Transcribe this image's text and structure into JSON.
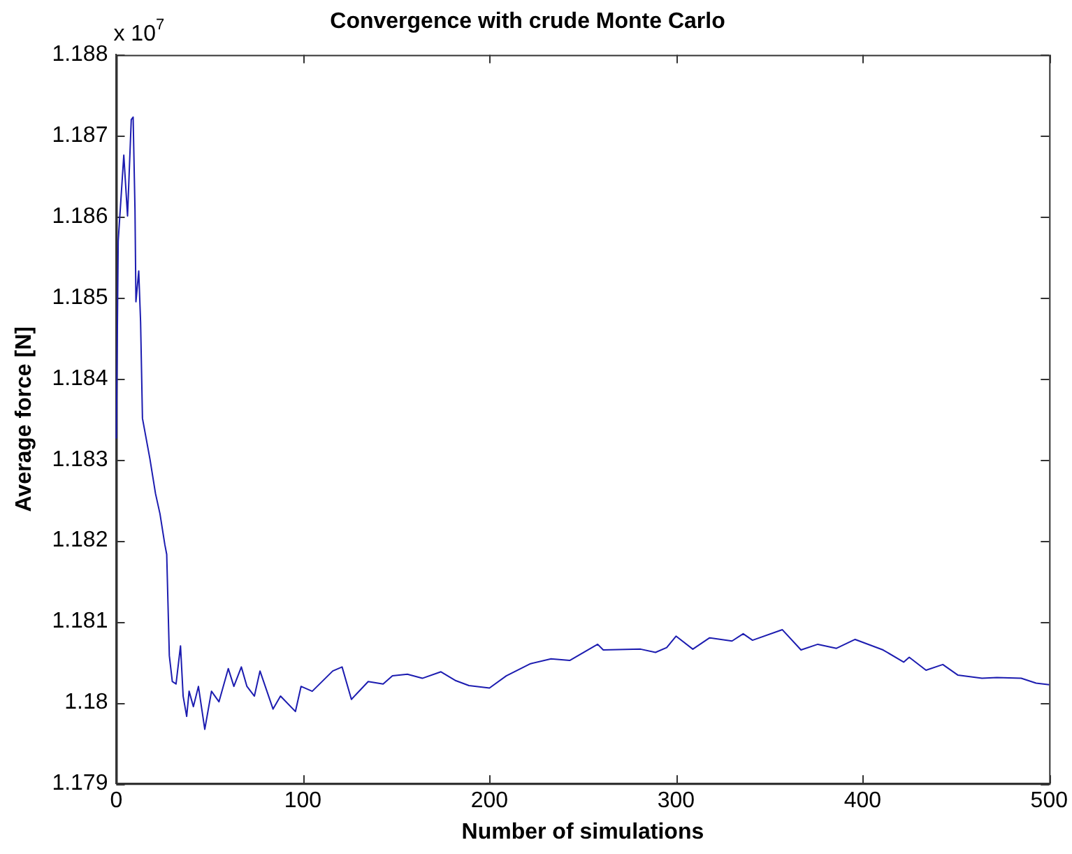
{
  "chart_data": {
    "type": "line",
    "title": "Convergence with crude Monte Carlo",
    "xlabel": "Number of simulations",
    "ylabel": "Average force [N]",
    "annotations": [
      "x 10$^{7}$"
    ],
    "series": [
      {
        "color": "#1c1cb0",
        "x": [
          0,
          1,
          4,
          6,
          8,
          9,
          10,
          10.5,
          12,
          13,
          14,
          18,
          21,
          23.4,
          26,
          27,
          28.4,
          30,
          32,
          34.4,
          35.8,
          37.7,
          39,
          41.3,
          44,
          47.4,
          51,
          55,
          60,
          63,
          67,
          70,
          74,
          77,
          84,
          88,
          96,
          99,
          105,
          116,
          121,
          126,
          135,
          143,
          148,
          156,
          164,
          174,
          182,
          189,
          200,
          209,
          222,
          233,
          243,
          258,
          261,
          281,
          289,
          295,
          300,
          309,
          318,
          330,
          336,
          341,
          357,
          367,
          376,
          386,
          396,
          411,
          422,
          425,
          434,
          443,
          451,
          464,
          472,
          485,
          493,
          500
        ],
        "values": [
          1.18326,
          1.1857,
          1.18676,
          1.18601,
          1.1872,
          1.18723,
          1.18608,
          1.18495,
          1.18533,
          1.1847,
          1.18351,
          1.18301,
          1.18258,
          1.18233,
          1.18195,
          1.18183,
          1.18058,
          1.18026,
          1.18023,
          1.1807,
          1.18008,
          1.17983,
          1.18014,
          1.17995,
          1.1802,
          1.17967,
          1.18014,
          1.18001,
          1.18042,
          1.1802,
          1.18044,
          1.1802,
          1.18008,
          1.18039,
          1.17992,
          1.18008,
          1.17989,
          1.1802,
          1.18014,
          1.18039,
          1.18044,
          1.18004,
          1.18026,
          1.18023,
          1.18033,
          1.18035,
          1.1803,
          1.18038,
          1.18027,
          1.18021,
          1.18018,
          1.18033,
          1.18048,
          1.18054,
          1.18052,
          1.18072,
          1.18065,
          1.18066,
          1.18062,
          1.18068,
          1.18082,
          1.18066,
          1.1808,
          1.18076,
          1.18085,
          1.18077,
          1.1809,
          1.18065,
          1.18072,
          1.18067,
          1.18078,
          1.18065,
          1.1805,
          1.18056,
          1.1804,
          1.18047,
          1.18034,
          1.1803,
          1.18031,
          1.1803,
          1.18024,
          1.18022
        ]
      }
    ],
    "xlim": [
      0,
      500
    ],
    "xticks": [
      0,
      100,
      200,
      300,
      400,
      500
    ],
    "ylim": [
      1.179,
      1.188
    ],
    "yticks": [
      1.179,
      1.18,
      1.181,
      1.182,
      1.183,
      1.184,
      1.185,
      1.186,
      1.187,
      1.188
    ],
    "grid": false,
    "legend": false,
    "marker": "none",
    "line_style": "solid"
  }
}
